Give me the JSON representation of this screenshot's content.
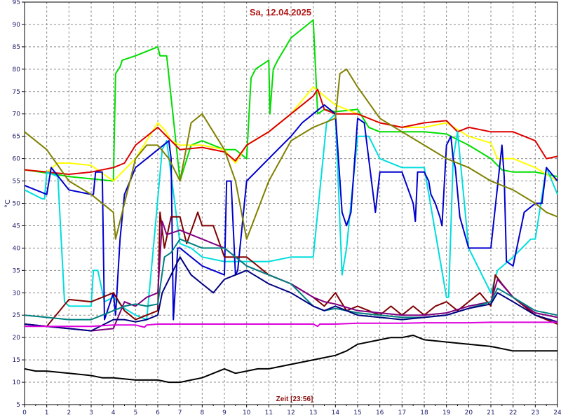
{
  "chart_data": {
    "type": "line",
    "title": "Sa, 12.04.2025",
    "xlabel": "Zeit [23:56]",
    "ylabel": "°C",
    "xlim": [
      0,
      24
    ],
    "ylim": [
      5,
      95
    ],
    "x_ticks": [
      0,
      1,
      2,
      3,
      4,
      5,
      6,
      7,
      8,
      9,
      10,
      11,
      12,
      13,
      14,
      15,
      16,
      17,
      18,
      19,
      20,
      21,
      22,
      23,
      24
    ],
    "y_ticks": [
      5,
      10,
      15,
      20,
      25,
      30,
      35,
      40,
      45,
      50,
      55,
      60,
      65,
      70,
      75,
      80,
      85,
      90,
      95
    ],
    "grid": true,
    "colors": {
      "background": "#ffffff",
      "grid": "#8a8a8a",
      "axis": "#000000"
    },
    "series": [
      {
        "color": "#00dd00",
        "x": [
          0,
          1,
          2,
          3,
          4,
          4.1,
          4.3,
          4.4,
          5,
          6,
          6.1,
          6.4,
          7,
          7.5,
          8,
          9,
          9.5,
          10,
          10.2,
          10.4,
          11,
          11.05,
          11.2,
          11.4,
          12,
          13,
          13.2,
          13.5,
          14,
          15,
          15.5,
          16,
          17,
          18,
          19,
          20,
          21,
          21.5,
          22,
          23,
          23.5,
          24
        ],
        "y": [
          57.5,
          56.8,
          56,
          55.5,
          55,
          79,
          80.5,
          82,
          83,
          85,
          83,
          83,
          55,
          63,
          64,
          62,
          62,
          60,
          78,
          80,
          82,
          70,
          80,
          82,
          87,
          91,
          70,
          71,
          70.5,
          71,
          67,
          66,
          66,
          66,
          65.5,
          63,
          60,
          57.5,
          57,
          57,
          56.5,
          56
        ]
      },
      {
        "color": "#ffff00",
        "x": [
          0,
          1,
          1.5,
          2,
          3,
          4,
          4.4,
          5,
          6,
          6.3,
          6.6,
          7,
          8,
          9,
          9.5,
          10,
          11,
          12,
          13,
          13.5,
          14,
          15,
          16,
          17,
          18,
          19,
          20,
          21,
          21.3,
          22,
          23,
          24
        ],
        "y": [
          57.5,
          57,
          59,
          59,
          58.5,
          55,
          57,
          60,
          68,
          66.5,
          64,
          63,
          63,
          62,
          59,
          63,
          66,
          70,
          76,
          74,
          72,
          70,
          68,
          67,
          67,
          68,
          65,
          63.5,
          60,
          60,
          58,
          55
        ]
      },
      {
        "color": "#dd0000",
        "x": [
          0,
          1,
          2,
          3,
          4,
          4.5,
          5,
          6,
          6.5,
          7,
          8,
          9,
          9.5,
          10,
          11,
          12,
          13,
          13.2,
          13.5,
          14,
          15,
          16,
          17,
          18,
          19,
          19.5,
          20,
          21,
          22,
          23,
          23.5,
          24
        ],
        "y": [
          57.5,
          57,
          56.5,
          57,
          58,
          59,
          63,
          67,
          64.5,
          62,
          62.5,
          61.5,
          59.5,
          63,
          66,
          70,
          74,
          75.5,
          71,
          70,
          70,
          68,
          67,
          68,
          68.5,
          66,
          67,
          66,
          66,
          64,
          60,
          60.5
        ]
      },
      {
        "color": "#00dddd",
        "x": [
          0,
          0.8,
          0.9,
          1,
          1.5,
          1.8,
          2,
          3,
          3.1,
          3.3,
          3.6,
          4,
          4.5,
          5,
          5.5,
          5.8,
          6.2,
          6.4,
          7,
          7.5,
          8,
          9,
          10,
          11,
          12,
          13,
          13.6,
          14,
          14.3,
          14.5,
          15,
          15.5,
          16,
          17,
          18,
          19,
          19.1,
          19.3,
          19.5,
          20,
          21,
          21.3,
          22,
          22.8,
          23,
          23.5,
          24
        ],
        "y": [
          53,
          51,
          51,
          57,
          56,
          28,
          27,
          27,
          35,
          35,
          28,
          29,
          26.5,
          25,
          24,
          40,
          62,
          64,
          41,
          40,
          38,
          37,
          37,
          37,
          38,
          38,
          68,
          70,
          34,
          40,
          65,
          65,
          60,
          58,
          58,
          29,
          29,
          60,
          66,
          40,
          30,
          35,
          38,
          42,
          42,
          58,
          52
        ]
      },
      {
        "color": "#0000cc",
        "x": [
          0,
          1,
          1.2,
          2,
          3,
          3.1,
          3.2,
          3.5,
          3.6,
          4,
          4.1,
          4.3,
          4.5,
          5,
          6,
          6.5,
          6.6,
          6.7,
          6.9,
          7,
          7.5,
          8,
          9,
          9.1,
          9.3,
          9.5,
          9.6,
          10,
          11,
          12,
          12.5,
          13,
          13.5,
          14,
          14.3,
          14.5,
          14.7,
          15,
          15.3,
          15.5,
          15.8,
          16,
          16.5,
          17,
          17.5,
          17.6,
          17.7,
          18,
          18.2,
          18.3,
          18.5,
          18.7,
          18.8,
          19,
          19.2,
          19.3,
          19.4,
          19.6,
          20,
          21,
          21.5,
          21.6,
          21.7,
          22,
          22.5,
          23,
          23.3,
          23.5,
          24
        ],
        "y": [
          54,
          52,
          58,
          53,
          52,
          52,
          57,
          57,
          24,
          30,
          25,
          42,
          52,
          58,
          62,
          64,
          60,
          24,
          40,
          40,
          38,
          36,
          34,
          55,
          55,
          34,
          35,
          55,
          60,
          65,
          68,
          70,
          72,
          70,
          48,
          45,
          48,
          69,
          68,
          60,
          48,
          57,
          57,
          57,
          50,
          46,
          57,
          57,
          55,
          52,
          50,
          47,
          45,
          63,
          65,
          60,
          58,
          47,
          40,
          40,
          63,
          56,
          37,
          36,
          48,
          50,
          50,
          58,
          55
        ]
      },
      {
        "color": "#808000",
        "x": [
          0,
          1,
          2,
          3,
          4,
          4.1,
          5,
          5.5,
          6,
          6.5,
          7,
          7.5,
          8,
          9,
          9.5,
          10,
          11,
          12,
          13,
          13.5,
          14,
          14.2,
          14.5,
          15,
          16,
          17,
          18,
          19,
          20,
          21,
          22,
          23,
          23.5,
          24
        ],
        "y": [
          66,
          62,
          55,
          52,
          48,
          42,
          60,
          63,
          63,
          60,
          55,
          68,
          70,
          62,
          55,
          42,
          55,
          64,
          67,
          68,
          69,
          79,
          80,
          76,
          69,
          66,
          63,
          60,
          58,
          55,
          53,
          50,
          48,
          47
        ]
      },
      {
        "color": "#800000",
        "x": [
          0,
          1,
          2,
          3,
          3.5,
          4,
          4.5,
          5,
          5.5,
          6,
          6.1,
          6.3,
          6.6,
          7,
          7.3,
          7.8,
          8,
          8.5,
          9,
          9.5,
          10,
          10.5,
          11,
          11.5,
          12,
          13,
          13.5,
          14,
          14.5,
          15,
          16,
          16.5,
          17,
          17.5,
          18,
          18.5,
          19,
          19.5,
          20,
          20.5,
          21,
          21.2,
          21.5,
          22,
          23,
          24
        ],
        "y": [
          23,
          22.5,
          28.5,
          28,
          29,
          30,
          26,
          24,
          25,
          26,
          48,
          40,
          47,
          47,
          41,
          48,
          45,
          45,
          38,
          38,
          38,
          36,
          34,
          33,
          32,
          29,
          27,
          30,
          26,
          27,
          25,
          27,
          25,
          27,
          25,
          27,
          28,
          26,
          28,
          30,
          27,
          34,
          32,
          29,
          25,
          23
        ]
      },
      {
        "color": "#800080",
        "x": [
          0,
          1,
          2,
          3,
          4,
          4.5,
          5,
          5.5,
          6,
          6.2,
          6.4,
          7,
          8,
          9,
          10,
          11,
          12,
          13,
          13.5,
          14,
          15,
          16,
          17,
          18,
          19,
          20,
          21,
          21.3,
          22,
          23,
          24
        ],
        "y": [
          23,
          22.5,
          22,
          21.5,
          22,
          28,
          27,
          29,
          30,
          46,
          43,
          44,
          42,
          40,
          36,
          34,
          32,
          29,
          28,
          27.5,
          26,
          25.5,
          25,
          25,
          25.5,
          27,
          28,
          33,
          29,
          25.5,
          24.5
        ]
      },
      {
        "color": "#008080",
        "x": [
          0,
          1,
          2,
          3,
          4,
          4.5,
          5,
          5.5,
          6,
          6.3,
          6.6,
          7,
          8,
          9,
          10,
          11,
          12,
          13,
          13.5,
          14,
          15,
          16,
          17,
          18,
          19,
          20,
          21,
          21.3,
          22,
          23,
          24
        ],
        "y": [
          25,
          24.5,
          24,
          24,
          26,
          27,
          27.5,
          27,
          27.5,
          38,
          39,
          42,
          40,
          40,
          36,
          34,
          32,
          27,
          26,
          26.5,
          25.5,
          25,
          24.5,
          24.5,
          25,
          26.5,
          28,
          31,
          29,
          26,
          25
        ]
      },
      {
        "color": "#000080",
        "x": [
          0,
          1,
          2,
          3,
          4,
          4.5,
          5,
          5.5,
          6,
          6.2,
          6.5,
          7,
          7.5,
          8,
          8.5,
          9,
          10,
          11,
          12,
          13,
          13.5,
          14,
          15,
          16,
          17,
          18,
          19,
          20,
          21,
          21.3,
          22,
          23,
          24
        ],
        "y": [
          23,
          22.5,
          22,
          21.5,
          24,
          24,
          23.5,
          24,
          25,
          30,
          33,
          38,
          34,
          32,
          30,
          33,
          35,
          32,
          30,
          27,
          26,
          27,
          25,
          24.5,
          24,
          24.5,
          25,
          26.5,
          27.5,
          30,
          28,
          25,
          23.5
        ]
      },
      {
        "color": "#dd00dd",
        "x": [
          0,
          1,
          2,
          3,
          4,
          5,
          5.4,
          5.5,
          6,
          7,
          8,
          9,
          10,
          11,
          12,
          13,
          13.2,
          13.3,
          14,
          15,
          16,
          17,
          18,
          19,
          20,
          21,
          22,
          23,
          24
        ],
        "y": [
          22.5,
          22.5,
          22.5,
          22.5,
          22.8,
          22.8,
          22.3,
          22.8,
          23,
          23,
          23,
          23,
          23,
          23,
          23,
          23,
          22.5,
          23,
          23,
          23.2,
          23.2,
          23.2,
          23.3,
          23.3,
          23.3,
          23.4,
          23.4,
          23.4,
          23.4
        ]
      },
      {
        "color": "#000000",
        "x": [
          0,
          0.5,
          1,
          2,
          3,
          3.5,
          4,
          5,
          6,
          6.5,
          7,
          7.5,
          8,
          8.5,
          9,
          9.5,
          10,
          10.5,
          11,
          12,
          13,
          14,
          14.5,
          15,
          16,
          16.5,
          17,
          17.5,
          18,
          19,
          20,
          21,
          22,
          23,
          24
        ],
        "y": [
          13,
          12.5,
          12.5,
          12,
          11.5,
          11,
          11,
          10.5,
          10.5,
          10,
          10,
          10.5,
          11,
          12,
          13,
          12,
          12.5,
          13,
          13,
          14,
          15,
          16,
          17,
          18.5,
          19.5,
          20,
          20,
          20.5,
          19.5,
          19,
          18.5,
          18,
          17,
          17,
          17
        ]
      }
    ]
  }
}
